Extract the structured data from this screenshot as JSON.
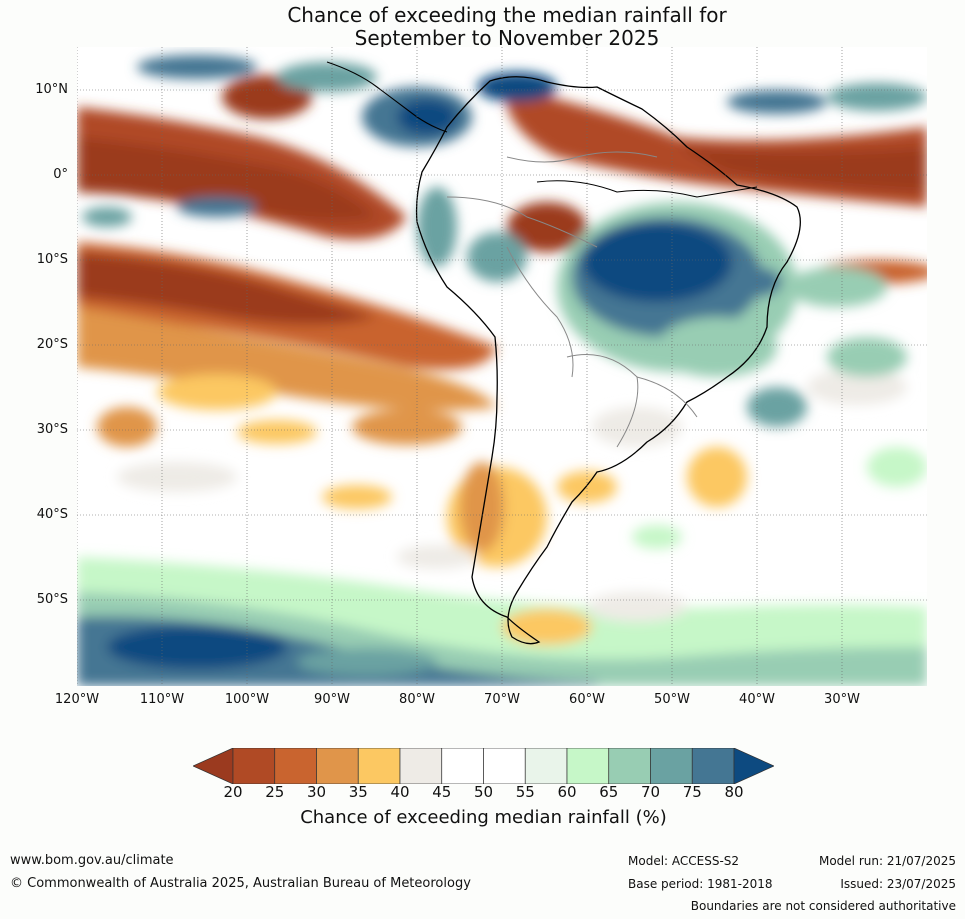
{
  "title": {
    "line1": "Chance of exceeding the median rainfall for",
    "line2": "September to November 2025"
  },
  "axes": {
    "lat_labels": [
      "10°N",
      "0°",
      "10°S",
      "20°S",
      "30°S",
      "40°S",
      "50°S"
    ],
    "lon_labels": [
      "120°W",
      "110°W",
      "100°W",
      "90°W",
      "80°W",
      "70°W",
      "60°W",
      "50°W",
      "40°W",
      "30°W"
    ]
  },
  "colorbar": {
    "ticks": [
      "20",
      "25",
      "30",
      "35",
      "40",
      "45",
      "50",
      "55",
      "60",
      "65",
      "70",
      "75",
      "80"
    ],
    "colors": [
      "#9b3a1f",
      "#b04a25",
      "#c9642f",
      "#e0954a",
      "#fcc862",
      "#eeebe6",
      "#ffffff",
      "#ffffff",
      "#e9f4ea",
      "#c6f7c8",
      "#98cdb3",
      "#6aa2a2",
      "#447693",
      "#0d4a80"
    ],
    "label": "Chance of exceeding median rainfall (%)"
  },
  "footer": {
    "website": "www.bom.gov.au/climate",
    "copyright": "© Commonwealth of Australia 2025, Australian Bureau of Meteorology",
    "model": "Model: ACCESS-S2",
    "base_period": "Base period: 1981-2018",
    "model_run": "Model run: 21/07/2025",
    "issued": "Issued: 23/07/2025",
    "disclaimer": "Boundaries are not considered authoritative"
  }
}
